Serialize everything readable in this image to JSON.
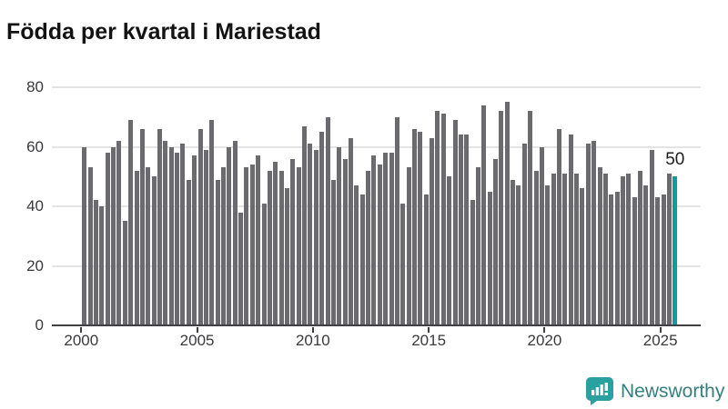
{
  "title": "Födda per kvartal i Mariestad",
  "chart_data": {
    "type": "bar",
    "title": "Födda per kvartal i Mariestad",
    "frequency": "quarterly",
    "x_start": "2000-Q1",
    "x_end": "2025-Q3",
    "values": [
      60,
      53,
      42,
      40,
      58,
      60,
      62,
      35,
      69,
      52,
      66,
      53,
      50,
      66,
      62,
      60,
      58,
      61,
      49,
      57,
      66,
      59,
      69,
      49,
      53,
      60,
      62,
      38,
      53,
      54,
      57,
      41,
      52,
      55,
      52,
      46,
      56,
      53,
      67,
      61,
      59,
      65,
      70,
      49,
      60,
      56,
      63,
      47,
      44,
      52,
      57,
      54,
      58,
      58,
      70,
      41,
      53,
      66,
      65,
      44,
      63,
      72,
      71,
      50,
      69,
      64,
      64,
      42,
      53,
      74,
      45,
      56,
      72,
      75,
      49,
      47,
      61,
      72,
      52,
      60,
      47,
      51,
      66,
      51,
      64,
      51,
      46,
      61,
      62,
      53,
      51,
      44,
      45,
      50,
      51,
      43,
      52,
      47,
      59,
      43,
      44,
      51,
      50
    ],
    "ylim": [
      0,
      80
    ],
    "yticks": [
      0,
      20,
      40,
      60,
      80
    ],
    "xtick_labels": [
      "2000",
      "2005",
      "2010",
      "2015",
      "2020",
      "2025"
    ],
    "grid": true,
    "legend_position": "none",
    "bar_color": "#6a6a6f",
    "highlight_color": "#0f9b9d",
    "highlight_index": 102,
    "annotation": {
      "text": "50",
      "index": 102
    }
  },
  "branding": {
    "name": "Newsworthy",
    "logo_color": "#2aa0a0",
    "text_color": "#35807f"
  }
}
